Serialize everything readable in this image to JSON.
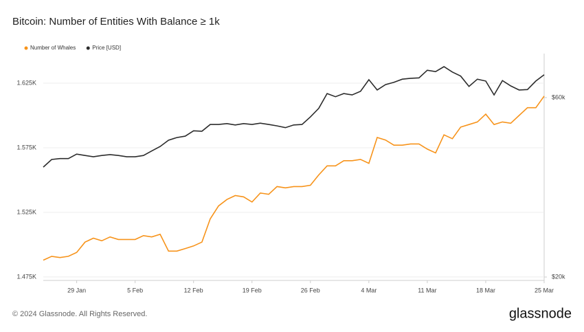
{
  "chart_data": {
    "type": "line",
    "title": "Bitcoin: Number of Entities With Balance ≥ 1k",
    "footer": "© 2024 Glassnode. All Rights Reserved.",
    "brand": "glassnode",
    "categories": [
      null,
      null,
      null,
      null,
      "29 Jan",
      null,
      null,
      null,
      null,
      null,
      null,
      "5 Feb",
      null,
      null,
      null,
      null,
      null,
      null,
      "12 Feb",
      null,
      null,
      null,
      null,
      null,
      null,
      "19 Feb",
      null,
      null,
      null,
      null,
      null,
      null,
      "26 Feb",
      null,
      null,
      null,
      null,
      null,
      null,
      "4 Mar",
      null,
      null,
      null,
      null,
      null,
      null,
      "11 Mar",
      null,
      null,
      null,
      null,
      null,
      null,
      "18 Mar",
      null,
      null,
      null,
      null,
      null,
      null,
      "25 Mar"
    ],
    "series": [
      {
        "name": "Number of Whales",
        "color": "#f7931a",
        "axis": "y",
        "values": [
          1488,
          1491,
          1490,
          1491,
          1494,
          1502,
          1505,
          1503,
          1506,
          1504,
          1504,
          1504,
          1507,
          1506,
          1508,
          1495,
          1495,
          1497,
          1499,
          1502,
          1520,
          1530,
          1535,
          1538,
          1537,
          1533,
          1540,
          1539,
          1545,
          1544,
          1545,
          1545,
          1546,
          1554,
          1561,
          1561,
          1565,
          1565,
          1566,
          1563,
          1583,
          1581,
          1577,
          1577,
          1578,
          1578,
          1574,
          1571,
          1585,
          1582,
          1591,
          1593,
          1595,
          1601,
          1593,
          1595,
          1594,
          1600,
          1606,
          1606,
          1615
        ]
      },
      {
        "name": "Price [USD]",
        "color": "#2b2b2b",
        "axis": "y2",
        "values": [
          44500,
          46200,
          46400,
          46400,
          47400,
          47100,
          46800,
          47100,
          47300,
          47100,
          46800,
          46800,
          47100,
          48100,
          49100,
          50500,
          51100,
          51400,
          52600,
          52500,
          54000,
          54000,
          54200,
          53900,
          54200,
          54000,
          54300,
          54000,
          53700,
          53300,
          53900,
          54000,
          55700,
          57600,
          60900,
          60200,
          60900,
          60600,
          61400,
          64000,
          61700,
          62900,
          63400,
          64100,
          64300,
          64400,
          66100,
          65800,
          66900,
          65700,
          64800,
          62500,
          64100,
          63700,
          60600,
          63800,
          62600,
          61700,
          61800,
          63700,
          65100
        ]
      }
    ],
    "ylim": [
      1472.3,
      1647.9
    ],
    "yticks": [
      {
        "value": 1475,
        "label": "1.475K"
      },
      {
        "value": 1525,
        "label": "1.525K"
      },
      {
        "value": 1575,
        "label": "1.575K"
      },
      {
        "value": 1625,
        "label": "1.625K"
      }
    ],
    "y2lim": [
      19234,
      69808
    ],
    "y2ticks": [
      {
        "value": 20000,
        "label": "$20k"
      },
      {
        "value": 60000,
        "label": "$60k"
      }
    ],
    "grid": true
  }
}
